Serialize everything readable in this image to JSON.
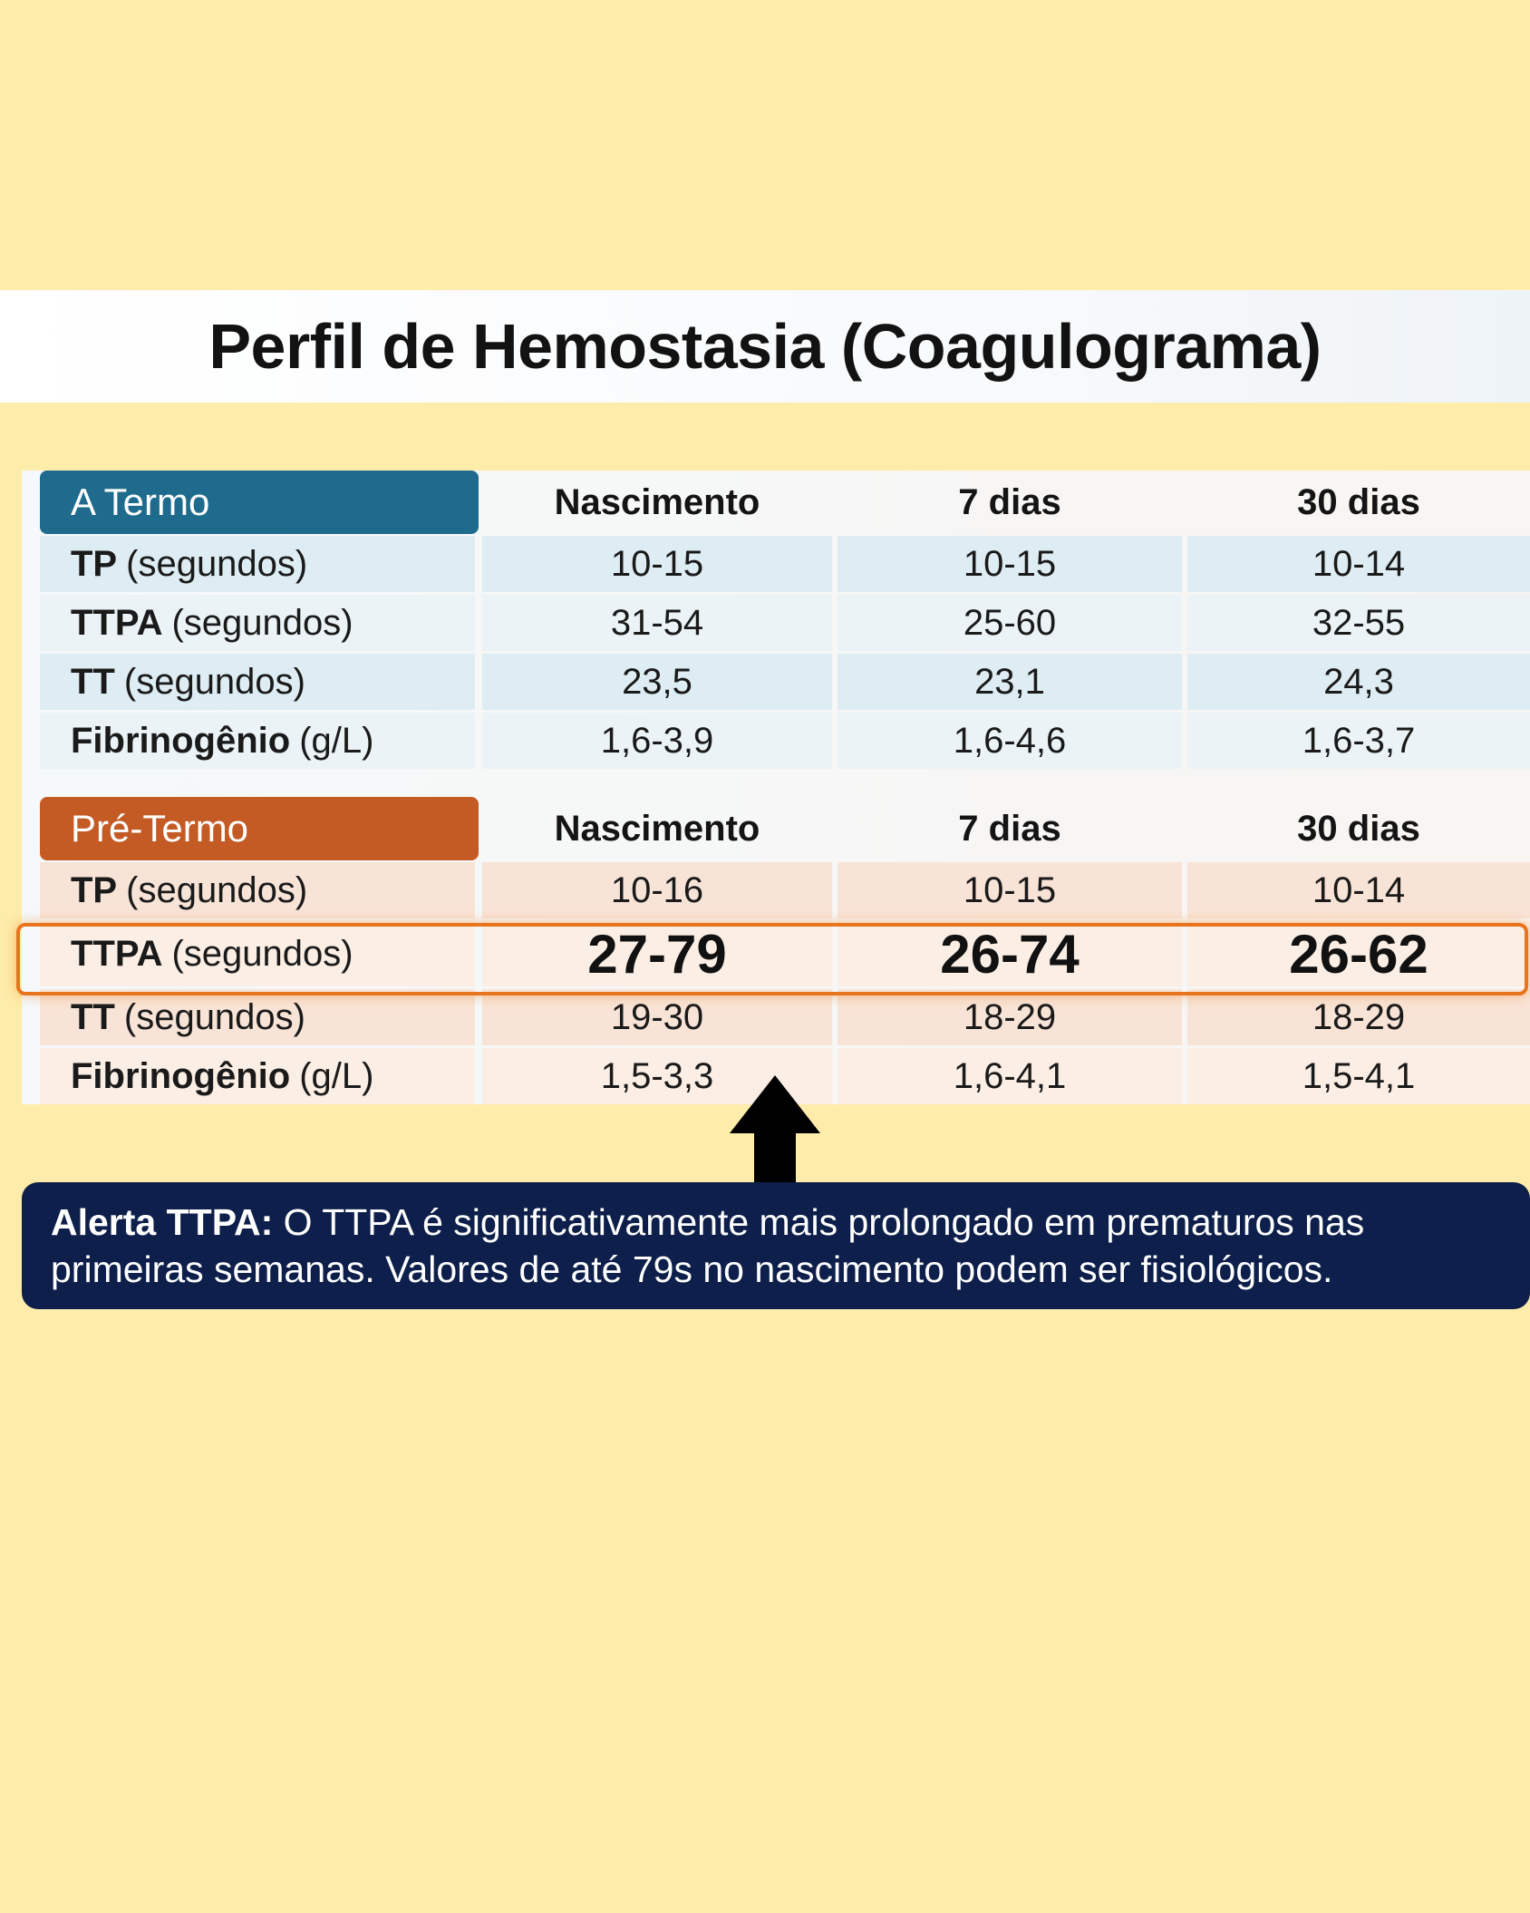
{
  "title": "Perfil de Hemostasia (Coagulograma)",
  "columns": [
    "Nascimento",
    "7 dias",
    "30 dias"
  ],
  "sections": [
    {
      "label": "A Termo",
      "color": "#1e6b8d",
      "rows": [
        {
          "param": "TP",
          "unit": "(segundos)",
          "values": [
            "10-15",
            "10-15",
            "10-14"
          ]
        },
        {
          "param": "TTPA",
          "unit": "(segundos)",
          "values": [
            "31-54",
            "25-60",
            "32-55"
          ]
        },
        {
          "param": "TT",
          "unit": "(segundos)",
          "values": [
            "23,5",
            "23,1",
            "24,3"
          ]
        },
        {
          "param": "Fibrinogênio",
          "unit": "(g/L)",
          "values": [
            "1,6-3,9",
            "1,6-4,6",
            "1,6-3,7"
          ]
        }
      ]
    },
    {
      "label": "Pré-Termo",
      "color": "#c45a24",
      "rows": [
        {
          "param": "TP",
          "unit": "(segundos)",
          "values": [
            "10-16",
            "10-15",
            "10-14"
          ]
        },
        {
          "param": "TTPA",
          "unit": "(segundos)",
          "values": [
            "27-79",
            "26-74",
            "26-62"
          ],
          "highlighted": true
        },
        {
          "param": "TT",
          "unit": "(segundos)",
          "values": [
            "19-30",
            "18-29",
            "18-29"
          ]
        },
        {
          "param": "Fibrinogênio",
          "unit": "(g/L)",
          "values": [
            "1,5-3,3",
            "1,6-4,1",
            "1,5-4,1"
          ]
        }
      ]
    }
  ],
  "alert": {
    "label": "Alerta TTPA:",
    "text": "O TTPA é significativamente mais prolongado em prematuros nas primeiras semanas. Valores de até 79s no nascimento podem ser fisiológicos."
  },
  "icons": {
    "arrow": "up-arrow-icon"
  },
  "colors": {
    "background": "#feecaa",
    "highlight": "#e8741e",
    "alert_bg": "#0d1f4a"
  }
}
